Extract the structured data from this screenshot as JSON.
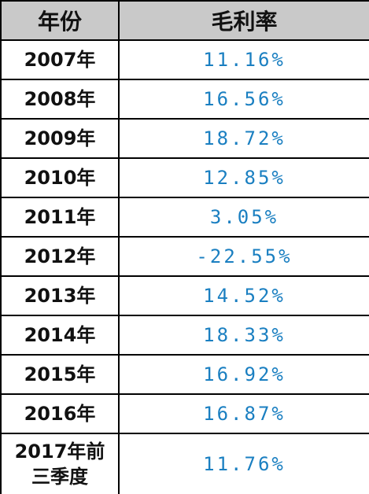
{
  "table": {
    "header": [
      "年份",
      "毛利率"
    ],
    "rows": [
      [
        "2007年",
        "11.16%"
      ],
      [
        "2008年",
        "16.56%"
      ],
      [
        "2009年",
        "18.72%"
      ],
      [
        "2010年",
        "12.85%"
      ],
      [
        "2011年",
        "3.05%"
      ],
      [
        "2012年",
        "-22.55%"
      ],
      [
        "2013年",
        "14.52%"
      ],
      [
        "2014年",
        "18.33%"
      ],
      [
        "2015年",
        "16.92%"
      ],
      [
        "2016年",
        "16.87%"
      ],
      [
        "2017年前三季度",
        "11.76%"
      ]
    ]
  }
}
